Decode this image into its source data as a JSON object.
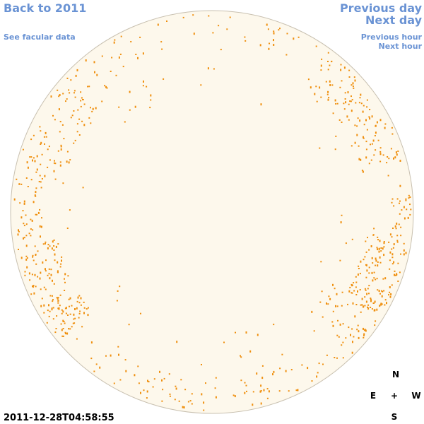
{
  "header": {
    "back_link": "Back to 2011",
    "previous_day": "Previous day",
    "next_day": "Next day",
    "facular_data": "See facular data",
    "previous_hour": "Previous hour",
    "next_hour": "Next hour"
  },
  "timestamp": "2011-12-28T04:58:55",
  "compass": {
    "north": "N",
    "east": "E",
    "center": "+",
    "west": "W",
    "south": "S"
  }
}
